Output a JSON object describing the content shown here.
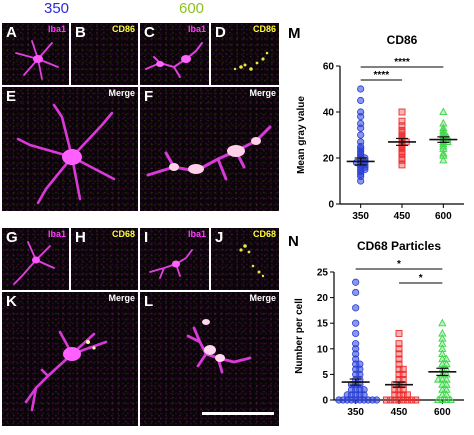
{
  "header": {
    "col_left": "350",
    "col_right": "600",
    "col_left_color": "#2a2ad8",
    "col_right_color": "#8cc21e"
  },
  "panels": {
    "A": {
      "letter": "A",
      "stain": "Iba1",
      "stain_color": "#ff3cff"
    },
    "B": {
      "letter": "B",
      "stain": "CD86",
      "stain_color": "#ffff3a"
    },
    "C": {
      "letter": "C",
      "stain": "Iba1",
      "stain_color": "#ff3cff"
    },
    "D": {
      "letter": "D",
      "stain": "CD86",
      "stain_color": "#ffff3a"
    },
    "E": {
      "letter": "E",
      "stain": "Merge",
      "stain_color": "#ffffff"
    },
    "F": {
      "letter": "F",
      "stain": "Merge",
      "stain_color": "#ffffff"
    },
    "G": {
      "letter": "G",
      "stain": "Iba1",
      "stain_color": "#ff3cff"
    },
    "H": {
      "letter": "H",
      "stain": "CD68",
      "stain_color": "#ffff3a"
    },
    "I": {
      "letter": "I",
      "stain": "Iba1",
      "stain_color": "#ff3cff"
    },
    "J": {
      "letter": "J",
      "stain": "CD68",
      "stain_color": "#ffff3a"
    },
    "K": {
      "letter": "K",
      "stain": "Merge",
      "stain_color": "#ffffff"
    },
    "L": {
      "letter": "L",
      "stain": "Merge",
      "stain_color": "#ffffff"
    }
  },
  "chart_data": [
    {
      "panel_letter": "M",
      "type": "scatter",
      "title": "CD86",
      "ylabel": "Mean gray value",
      "xlabel": "",
      "categories": [
        "350",
        "450",
        "600"
      ],
      "colors": [
        "#2a3fd6",
        "#ee2b2b",
        "#3ed64a"
      ],
      "markers": [
        "circle",
        "square",
        "triangle"
      ],
      "ylim": [
        0,
        60
      ],
      "yticks": [
        "0",
        "20",
        "40",
        "60"
      ],
      "means": [
        18.5,
        27,
        28
      ],
      "sem": [
        1.5,
        1.5,
        1.2
      ],
      "points": [
        [
          10,
          12,
          13,
          14,
          15,
          15,
          16,
          16,
          17,
          17,
          18,
          18,
          18,
          19,
          19,
          20,
          20,
          21,
          22,
          23,
          24,
          25,
          27,
          30,
          33,
          35,
          38,
          40,
          45,
          50
        ],
        [
          17,
          19,
          20,
          22,
          23,
          24,
          25,
          26,
          27,
          27,
          28,
          29,
          30,
          31,
          32,
          34,
          36,
          40
        ],
        [
          19,
          21,
          22,
          24,
          25,
          26,
          27,
          27,
          28,
          28,
          29,
          29,
          30,
          31,
          32,
          33,
          35,
          40
        ]
      ],
      "significance": [
        {
          "from": 0,
          "to": 1,
          "label": "****"
        },
        {
          "from": 0,
          "to": 2,
          "label": "****"
        }
      ]
    },
    {
      "panel_letter": "N",
      "type": "scatter",
      "title": "CD68 Particles",
      "ylabel": "Number per cell",
      "xlabel": "",
      "categories": [
        "350",
        "450",
        "600"
      ],
      "colors": [
        "#2a3fd6",
        "#ee2b2b",
        "#3ed64a"
      ],
      "markers": [
        "circle",
        "square",
        "triangle"
      ],
      "ylim": [
        0,
        25
      ],
      "yticks": [
        "0",
        "5",
        "10",
        "15",
        "20",
        "25"
      ],
      "means": [
        3.5,
        3,
        5.5
      ],
      "sem": [
        0.6,
        0.5,
        0.7
      ],
      "points": [
        [
          0,
          0,
          0,
          0,
          0,
          0,
          0,
          0,
          0,
          0,
          1,
          1,
          1,
          1,
          1,
          2,
          2,
          2,
          2,
          3,
          3,
          3,
          4,
          4,
          5,
          5,
          6,
          6,
          7,
          7,
          8,
          9,
          10,
          11,
          13,
          15,
          18,
          21,
          23
        ],
        [
          0,
          0,
          0,
          0,
          0,
          0,
          0,
          0,
          1,
          1,
          1,
          1,
          2,
          2,
          2,
          3,
          3,
          3,
          4,
          4,
          5,
          5,
          6,
          6,
          7,
          8,
          9,
          10,
          11,
          13
        ],
        [
          0,
          0,
          0,
          0,
          1,
          1,
          2,
          2,
          3,
          3,
          4,
          4,
          4,
          5,
          5,
          6,
          6,
          7,
          7,
          8,
          8,
          9,
          10,
          11,
          12,
          13,
          15
        ]
      ],
      "significance": [
        {
          "from": 0,
          "to": 2,
          "label": "*"
        },
        {
          "from": 1,
          "to": 2,
          "label": "*"
        }
      ]
    }
  ]
}
